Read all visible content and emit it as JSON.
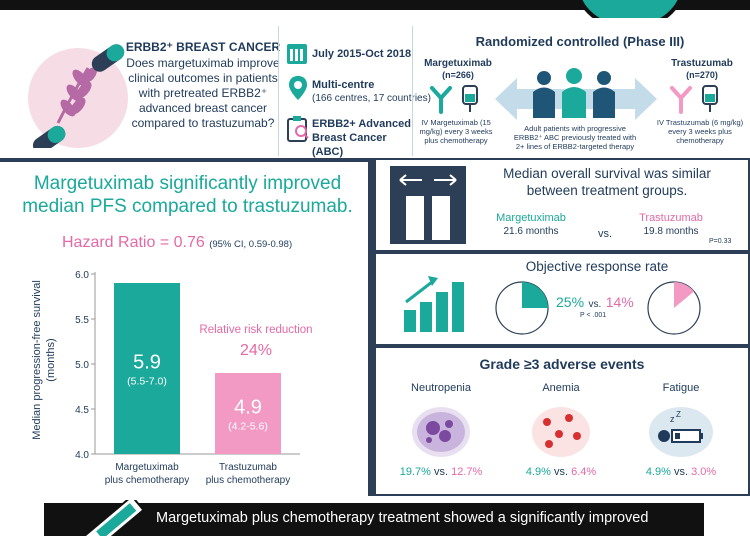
{
  "header": {
    "question_title": "ERBB2⁺ BREAST CANCER",
    "question": "Does margetuximab improve clinical outcomes in patients with pretreated ERBB2⁺ advanced breast cancer compared to trastuzumab?",
    "study_dates": "July 2015-Oct 2018",
    "multicentre_title": "Multi-centre",
    "multicentre_detail": "(166 centres, 17 countries)",
    "abc_label": "ERBB2+ Advanced Breast Cancer (ABC)",
    "trial_title": "Randomized controlled (Phase III)",
    "arm1_name": "Margetuximab",
    "arm1_n": "(n=266)",
    "arm1_regimen": "IV Margetuximab (15 mg/kg) every 3 weeks plus chemotherapy",
    "population": "Adult patients with progressive ERBB2⁺ ABC previously treated with 2+ lines of ERBB2-targeted therapy",
    "arm2_name": "Trastuzumab",
    "arm2_n": "(n=270)",
    "arm2_regimen": "IV Trastuzumab (6 mg/kg) every 3 weeks plus chemotherapy"
  },
  "pfs_panel": {
    "headline": "Margetuximab significantly improved median PFS compared to trastuzumab.",
    "hazard_ratio": "Hazard Ratio = 0.76",
    "hazard_ci": "(95% CI,  0.59-0.98)",
    "rrr_label": "Relative risk reduction",
    "rrr_value": "24%"
  },
  "chart_data": {
    "type": "bar",
    "categories": [
      "Margetuximab plus chemotherapy",
      "Trastuzumab plus chemotherapy"
    ],
    "values": [
      5.9,
      4.9
    ],
    "value_labels": [
      "5.9",
      "4.9"
    ],
    "ci_labels": [
      "(5.5-7.0)",
      "(4.2-5.6)"
    ],
    "colors": [
      "#1aa99a",
      "#f29ac4"
    ],
    "ylabel": "Median progression-free survival (months)",
    "ylim": [
      4.0,
      6.0
    ],
    "yticks": [
      "4.0",
      "4.5",
      "5.0",
      "5.5",
      "6.0"
    ]
  },
  "os_panel": {
    "title": "Median overall survival was similar between treatment groups.",
    "arm1_label": "Margetuximab",
    "arm1_value": "21.6 months",
    "vs": "vs.",
    "arm2_label": "Trastuzumab",
    "arm2_value": "19.8 months",
    "p_value": "P=0.33"
  },
  "orr_panel": {
    "title": "Objective response rate",
    "arm1_value": "25%",
    "vs": "vs.",
    "arm2_value": "14%",
    "p_value": "P < .001",
    "arm1_fraction": 0.25,
    "arm2_fraction": 0.14
  },
  "ae_panel": {
    "title": "Grade ≥3 adverse events",
    "items": [
      {
        "name": "Neutropenia",
        "arm1": "19.7%",
        "vs": "vs.",
        "arm2": "12.7%"
      },
      {
        "name": "Anemia",
        "arm1": "4.9%",
        "vs": "vs.",
        "arm2": "6.4%"
      },
      {
        "name": "Fatigue",
        "arm1": "4.9%",
        "vs": "vs.",
        "arm2": "3.0%"
      }
    ]
  },
  "footer": {
    "conclusion": "Margetuximab plus chemotherapy treatment showed a significantly improved"
  },
  "colors": {
    "teal": "#1aa99a",
    "pink": "#e36aa6",
    "navy": "#2c3f57",
    "light_blue": "#a9c8dd"
  }
}
